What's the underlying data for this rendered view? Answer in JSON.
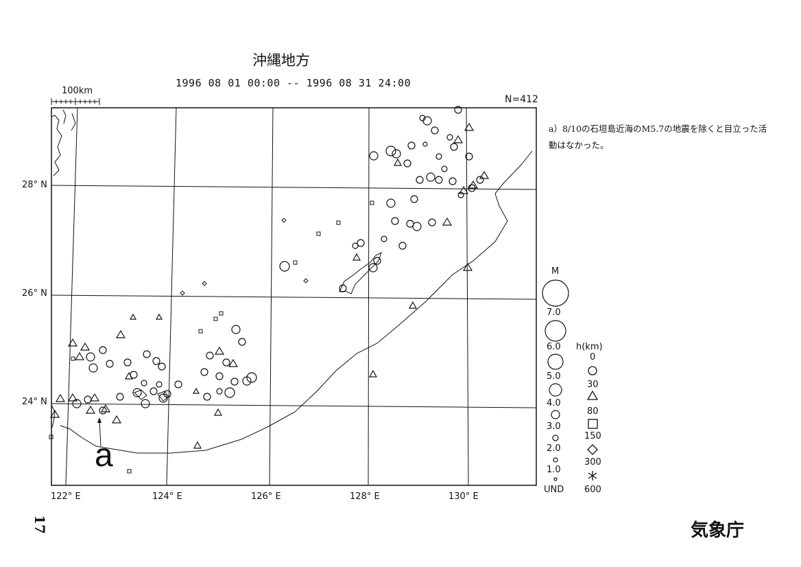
{
  "header": {
    "title": "沖縄地方",
    "period": "1996 08 01 00:00 -- 1996 08 31 24:00",
    "count": "N=412"
  },
  "map": {
    "scale_label": "100km",
    "lat_labels": [
      "28° N",
      "26° N",
      "24° N"
    ],
    "lon_labels": [
      "122° E",
      "124° E",
      "126° E",
      "128° E",
      "130° E"
    ],
    "marker_label": "a"
  },
  "note": {
    "text": "a）8/10の石垣島近海のM5.7の地震を除くと目立った活動はなかった。"
  },
  "legend": {
    "magnitude_title": "M",
    "magnitude_items": [
      "7.0",
      "6.0",
      "5.0",
      "4.0",
      "3.0",
      "2.0",
      "1.0",
      "UND"
    ],
    "depth_title": "h(km)",
    "depth_items": [
      "0",
      "30",
      "80",
      "150",
      "300",
      "600"
    ]
  },
  "footer": {
    "agency": "気象庁",
    "page": "17"
  }
}
